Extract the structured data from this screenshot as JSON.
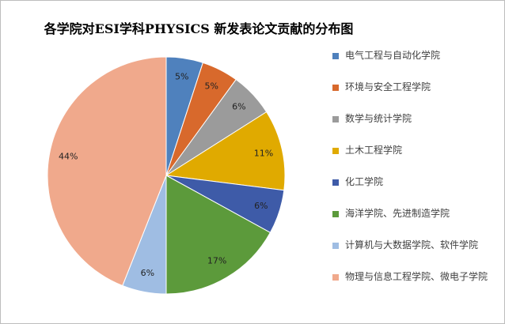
{
  "chart_data": {
    "type": "pie",
    "title": "各学院对ESI学科PHYSICS 新发表论文贡献的分布图",
    "legend_position": "right",
    "slices": [
      {
        "label": "电气工程与自动化学院",
        "value": 5,
        "display": "5%",
        "color": "#4f81bd"
      },
      {
        "label": "环境与安全工程学院",
        "value": 5,
        "display": "5%",
        "color": "#d8692c"
      },
      {
        "label": "数学与统计学院",
        "value": 6,
        "display": "6%",
        "color": "#9b9b9b"
      },
      {
        "label": "土木工程学院",
        "value": 11,
        "display": "11%",
        "color": "#e0aa00"
      },
      {
        "label": "化工学院",
        "value": 6,
        "display": "6%",
        "color": "#3e5ba8"
      },
      {
        "label": "海洋学院、先进制造学院",
        "value": 17,
        "display": "17%",
        "color": "#5c9a3b"
      },
      {
        "label": "计算机与大数据学院、软件学院",
        "value": 6,
        "display": "6%",
        "color": "#9fbde3"
      },
      {
        "label": "物理与信息工程学院、微电子学院",
        "value": 44,
        "display": "44%",
        "color": "#f0a98c"
      }
    ]
  }
}
